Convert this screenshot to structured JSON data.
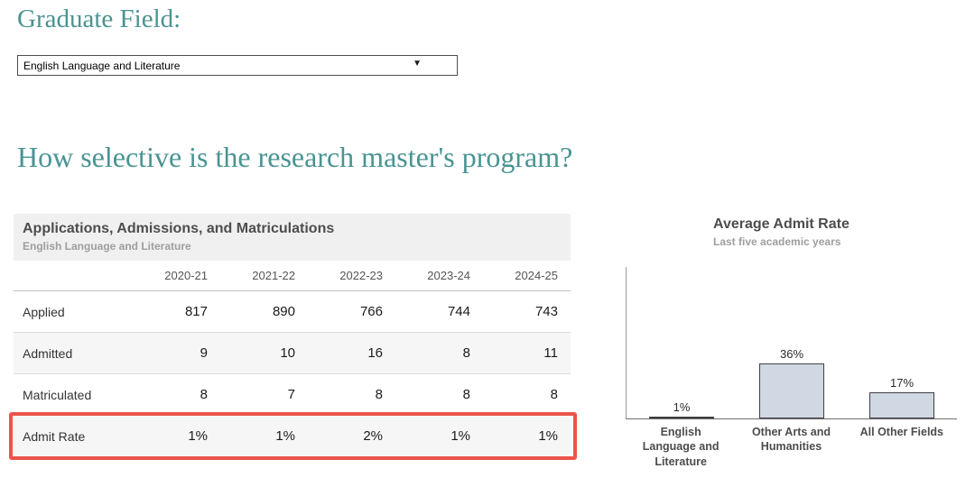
{
  "colors": {
    "accent_teal": "#4a9492",
    "highlight_red": "#eb5449",
    "bar_fill": "#cfd8e3",
    "bar_border": "#3f3f3f",
    "panel_title_gray": "#4d4d4d",
    "panel_subtitle_gray": "#9e9e9e",
    "table_band_gray": "#f0f0f0"
  },
  "graduate_field": {
    "label": "Graduate Field:",
    "selected_option": "English Language and Literature"
  },
  "question_heading": "How selective is the research master's program?",
  "chart_data": [
    {
      "type": "table",
      "title": "Applications, Admissions, and Matriculations",
      "subtitle": "English Language and Literature",
      "columns": [
        "2020-21",
        "2021-22",
        "2022-23",
        "2023-24",
        "2024-25"
      ],
      "rows": [
        {
          "label": "Applied",
          "values": [
            "817",
            "890",
            "766",
            "744",
            "743"
          ]
        },
        {
          "label": "Admitted",
          "values": [
            "9",
            "10",
            "16",
            "8",
            "11"
          ]
        },
        {
          "label": "Matriculated",
          "values": [
            "8",
            "7",
            "8",
            "8",
            "8"
          ]
        },
        {
          "label": "Admit Rate",
          "values": [
            "1%",
            "1%",
            "2%",
            "1%",
            "1%"
          ],
          "highlighted": true
        }
      ],
      "highlight_note": "Admit Rate row outlined in red"
    },
    {
      "type": "bar",
      "title": "Average Admit Rate",
      "subtitle": "Last five academic years",
      "categories": [
        "English Language and Literature",
        "Other Arts and Humanities",
        "All Other Fields"
      ],
      "values": [
        1,
        36,
        17
      ],
      "value_labels": [
        "1%",
        "36%",
        "17%"
      ],
      "ylim": [
        0,
        100
      ],
      "unit": "%",
      "grid": false,
      "legend": false
    }
  ]
}
